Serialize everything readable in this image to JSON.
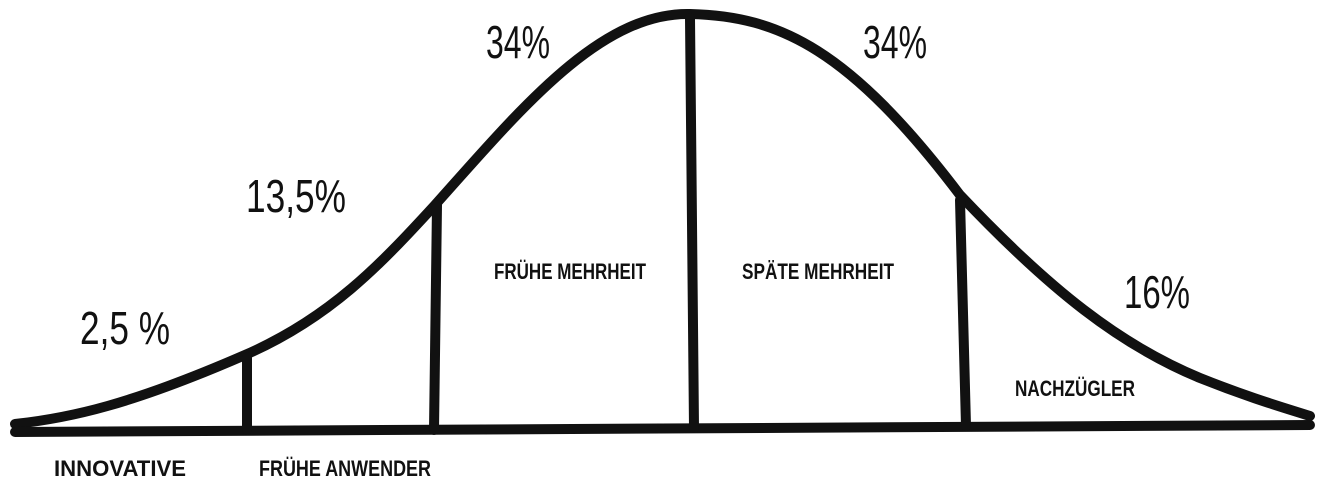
{
  "segments": [
    {
      "name": "INNOVATIVE",
      "share": "2,5 %"
    },
    {
      "name": "FRÜHE ANWENDER",
      "share": "13,5%"
    },
    {
      "name": "FRÜHE MEHRHEIT",
      "share": "34%"
    },
    {
      "name": "SPÄTE MEHRHEIT",
      "share": "34%"
    },
    {
      "name": "NACHZÜGLER",
      "share": "16%"
    }
  ]
}
